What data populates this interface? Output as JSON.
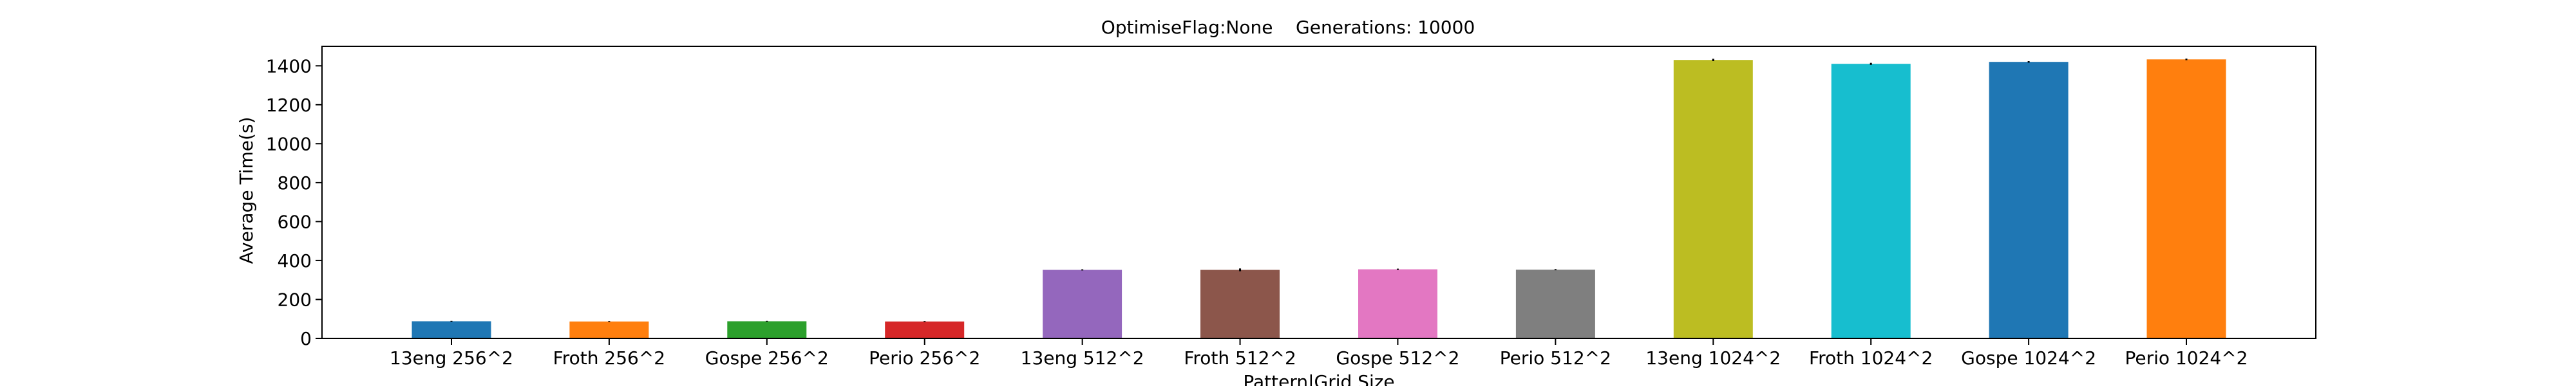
{
  "chart_data": {
    "type": "bar",
    "title": "OptimiseFlag:None    Generations: 10000",
    "xlabel": "Pattern|Grid Size",
    "ylabel": "Average Time(s)",
    "ylim": [
      0,
      1500
    ],
    "yticks": [
      0,
      200,
      400,
      600,
      800,
      1000,
      1200,
      1400
    ],
    "grid": false,
    "legend": "none",
    "categories": [
      "13eng 256^2",
      "Froth 256^2",
      "Gospe 256^2",
      "Perio 256^2",
      "13eng 512^2",
      "Froth 512^2",
      "Gospe 512^2",
      "Perio 512^2",
      "13eng 1024^2",
      "Froth 1024^2",
      "Gospe 1024^2",
      "Perio 1024^2"
    ],
    "values": [
      88,
      87,
      88,
      87,
      352,
      352,
      355,
      353,
      1430,
      1410,
      1420,
      1433
    ],
    "errors": [
      2,
      2,
      2,
      2,
      3,
      7,
      3,
      3,
      6,
      5,
      4,
      4
    ],
    "colors": [
      "#1f77b4",
      "#ff7f0e",
      "#2ca02c",
      "#d62728",
      "#9467bd",
      "#8c564b",
      "#e377c2",
      "#7f7f7f",
      "#bcbd22",
      "#17becf",
      "#1f77b4",
      "#ff7f0e"
    ]
  }
}
